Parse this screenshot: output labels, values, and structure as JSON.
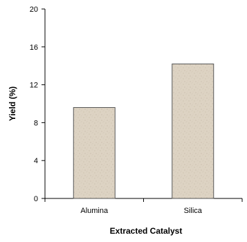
{
  "chart_data": {
    "type": "bar",
    "title": "",
    "xlabel": "Extracted Catalyst",
    "ylabel": "Yield (%)",
    "categories": [
      "Alumina",
      "Silica"
    ],
    "values": [
      9.6,
      14.2
    ],
    "ylim": [
      0,
      20
    ],
    "yticks": [
      0,
      4,
      8,
      12,
      16,
      20
    ],
    "ytick_labels": [
      "0",
      "4",
      "8",
      "12",
      "16",
      "20"
    ],
    "grid": false,
    "legend": "none",
    "bar_color": "#ddd3c3",
    "bar_edge_color": "#555555"
  }
}
